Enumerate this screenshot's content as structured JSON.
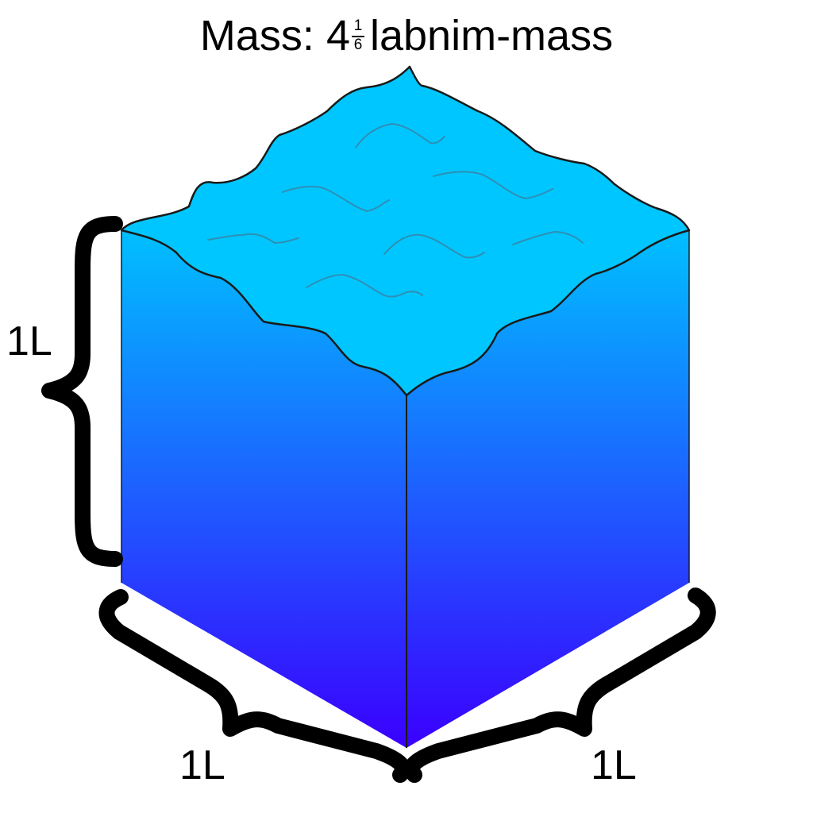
{
  "title": {
    "label": "Mass:",
    "whole": "4",
    "numerator": "1",
    "denominator": "6",
    "unit": "labnim-mass"
  },
  "dimensions": {
    "height": "1L",
    "front_width": "1L",
    "right_width": "1L"
  },
  "colors": {
    "top_surface": "#00c6ff",
    "side_top": "#00c0ff",
    "side_bottom": "#3a00ff",
    "outline": "#1a1a1a",
    "ripple": "#2e8fb5",
    "brace": "#000000"
  }
}
